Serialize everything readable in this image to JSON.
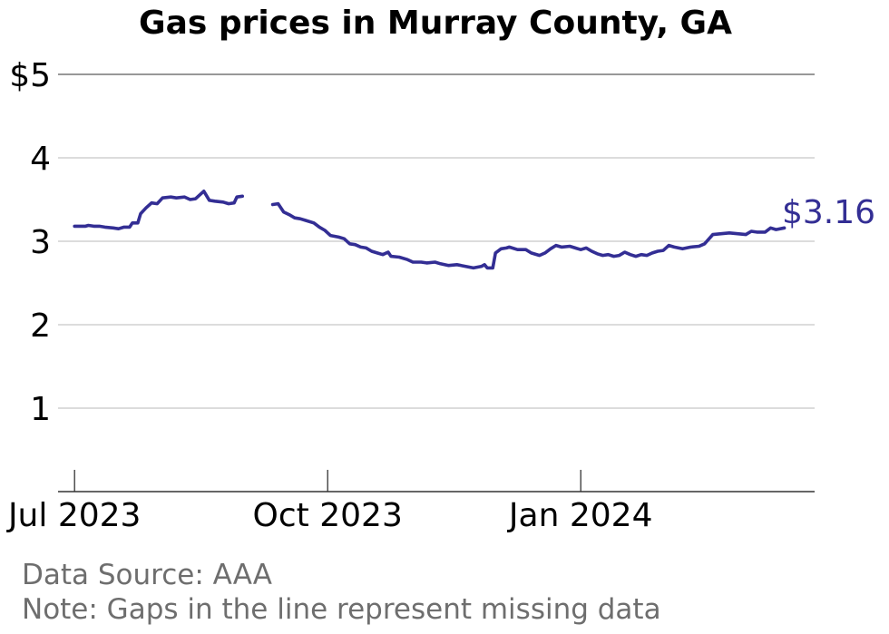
{
  "chart_data": {
    "type": "line",
    "title": "Gas prices in Murray County, GA",
    "xlabel": "",
    "ylabel": "",
    "ylim": [
      0,
      5
    ],
    "xlim": [
      "2023-06-25",
      "2024-03-26"
    ],
    "y_ticks": [
      {
        "value": 5,
        "label": "$5"
      },
      {
        "value": 4,
        "label": "4"
      },
      {
        "value": 3,
        "label": "3"
      },
      {
        "value": 2,
        "label": "2"
      },
      {
        "value": 1,
        "label": "1"
      }
    ],
    "x_ticks": [
      {
        "value": "2023-07-01",
        "label": "Jul 2023"
      },
      {
        "value": "2023-10-01",
        "label": "Oct 2023"
      },
      {
        "value": "2024-01-01",
        "label": "Jan 2024"
      }
    ],
    "grid": true,
    "line_color": "#332e94",
    "end_label": "$3.16",
    "series": [
      {
        "segments": [
          [
            [
              "2023-07-01",
              3.18
            ],
            [
              "2023-07-05",
              3.18
            ],
            [
              "2023-07-06",
              3.19
            ],
            [
              "2023-07-08",
              3.18
            ],
            [
              "2023-07-10",
              3.18
            ],
            [
              "2023-07-12",
              3.17
            ],
            [
              "2023-07-15",
              3.16
            ],
            [
              "2023-07-17",
              3.15
            ],
            [
              "2023-07-19",
              3.17
            ],
            [
              "2023-07-21",
              3.17
            ],
            [
              "2023-07-22",
              3.22
            ],
            [
              "2023-07-24",
              3.22
            ],
            [
              "2023-07-25",
              3.33
            ],
            [
              "2023-07-27",
              3.4
            ],
            [
              "2023-07-29",
              3.46
            ],
            [
              "2023-07-31",
              3.45
            ],
            [
              "2023-08-02",
              3.52
            ],
            [
              "2023-08-05",
              3.53
            ],
            [
              "2023-08-07",
              3.52
            ],
            [
              "2023-08-10",
              3.53
            ],
            [
              "2023-08-12",
              3.5
            ],
            [
              "2023-08-14",
              3.51
            ],
            [
              "2023-08-17",
              3.6
            ],
            [
              "2023-08-19",
              3.49
            ],
            [
              "2023-08-21",
              3.48
            ],
            [
              "2023-08-24",
              3.47
            ],
            [
              "2023-08-26",
              3.45
            ],
            [
              "2023-08-28",
              3.46
            ],
            [
              "2023-08-29",
              3.53
            ],
            [
              "2023-08-31",
              3.54
            ]
          ],
          [
            [
              "2023-09-11",
              3.44
            ],
            [
              "2023-09-13",
              3.45
            ],
            [
              "2023-09-15",
              3.35
            ],
            [
              "2023-09-17",
              3.32
            ],
            [
              "2023-09-19",
              3.28
            ],
            [
              "2023-09-21",
              3.27
            ],
            [
              "2023-09-23",
              3.25
            ],
            [
              "2023-09-26",
              3.22
            ],
            [
              "2023-09-28",
              3.17
            ],
            [
              "2023-09-30",
              3.13
            ],
            [
              "2023-10-02",
              3.07
            ],
            [
              "2023-10-05",
              3.05
            ],
            [
              "2023-10-07",
              3.03
            ],
            [
              "2023-10-09",
              2.97
            ],
            [
              "2023-10-11",
              2.96
            ],
            [
              "2023-10-13",
              2.93
            ],
            [
              "2023-10-15",
              2.92
            ],
            [
              "2023-10-17",
              2.88
            ],
            [
              "2023-10-19",
              2.86
            ],
            [
              "2023-10-21",
              2.84
            ],
            [
              "2023-10-23",
              2.87
            ],
            [
              "2023-10-24",
              2.82
            ],
            [
              "2023-10-27",
              2.81
            ],
            [
              "2023-10-30",
              2.78
            ],
            [
              "2023-11-01",
              2.75
            ],
            [
              "2023-11-04",
              2.75
            ],
            [
              "2023-11-06",
              2.74
            ],
            [
              "2023-11-09",
              2.75
            ],
            [
              "2023-11-11",
              2.73
            ],
            [
              "2023-11-14",
              2.71
            ],
            [
              "2023-11-17",
              2.72
            ],
            [
              "2023-11-20",
              2.7
            ],
            [
              "2023-11-23",
              2.68
            ],
            [
              "2023-11-26",
              2.7
            ],
            [
              "2023-11-27",
              2.72
            ],
            [
              "2023-11-28",
              2.68
            ],
            [
              "2023-11-30",
              2.68
            ],
            [
              "2023-12-01",
              2.86
            ],
            [
              "2023-12-03",
              2.91
            ],
            [
              "2023-12-05",
              2.92
            ],
            [
              "2023-12-06",
              2.93
            ],
            [
              "2023-12-09",
              2.9
            ],
            [
              "2023-12-12",
              2.9
            ],
            [
              "2023-12-14",
              2.86
            ],
            [
              "2023-12-17",
              2.83
            ],
            [
              "2023-12-19",
              2.86
            ],
            [
              "2023-12-21",
              2.91
            ],
            [
              "2023-12-23",
              2.95
            ],
            [
              "2023-12-25",
              2.93
            ],
            [
              "2023-12-28",
              2.94
            ],
            [
              "2023-12-30",
              2.92
            ],
            [
              "2024-01-01",
              2.9
            ],
            [
              "2024-01-03",
              2.92
            ],
            [
              "2024-01-05",
              2.88
            ],
            [
              "2024-01-07",
              2.85
            ],
            [
              "2024-01-09",
              2.83
            ],
            [
              "2024-01-11",
              2.84
            ],
            [
              "2024-01-13",
              2.82
            ],
            [
              "2024-01-15",
              2.83
            ],
            [
              "2024-01-17",
              2.87
            ],
            [
              "2024-01-19",
              2.84
            ],
            [
              "2024-01-21",
              2.82
            ],
            [
              "2024-01-23",
              2.84
            ],
            [
              "2024-01-25",
              2.83
            ],
            [
              "2024-01-27",
              2.86
            ],
            [
              "2024-01-29",
              2.88
            ],
            [
              "2024-01-31",
              2.89
            ],
            [
              "2024-02-02",
              2.95
            ],
            [
              "2024-02-04",
              2.93
            ],
            [
              "2024-02-07",
              2.91
            ],
            [
              "2024-02-10",
              2.93
            ],
            [
              "2024-02-13",
              2.94
            ],
            [
              "2024-02-15",
              2.97
            ],
            [
              "2024-02-18",
              3.08
            ],
            [
              "2024-02-21",
              3.09
            ],
            [
              "2024-02-24",
              3.1
            ],
            [
              "2024-02-27",
              3.09
            ],
            [
              "2024-03-01",
              3.08
            ],
            [
              "2024-03-03",
              3.12
            ],
            [
              "2024-03-05",
              3.11
            ],
            [
              "2024-03-08",
              3.11
            ],
            [
              "2024-03-10",
              3.16
            ],
            [
              "2024-03-12",
              3.14
            ],
            [
              "2024-03-15",
              3.16
            ]
          ]
        ]
      }
    ]
  },
  "footer": {
    "source": "Data Source: AAA",
    "note": "Note: Gaps in the line represent missing data"
  }
}
